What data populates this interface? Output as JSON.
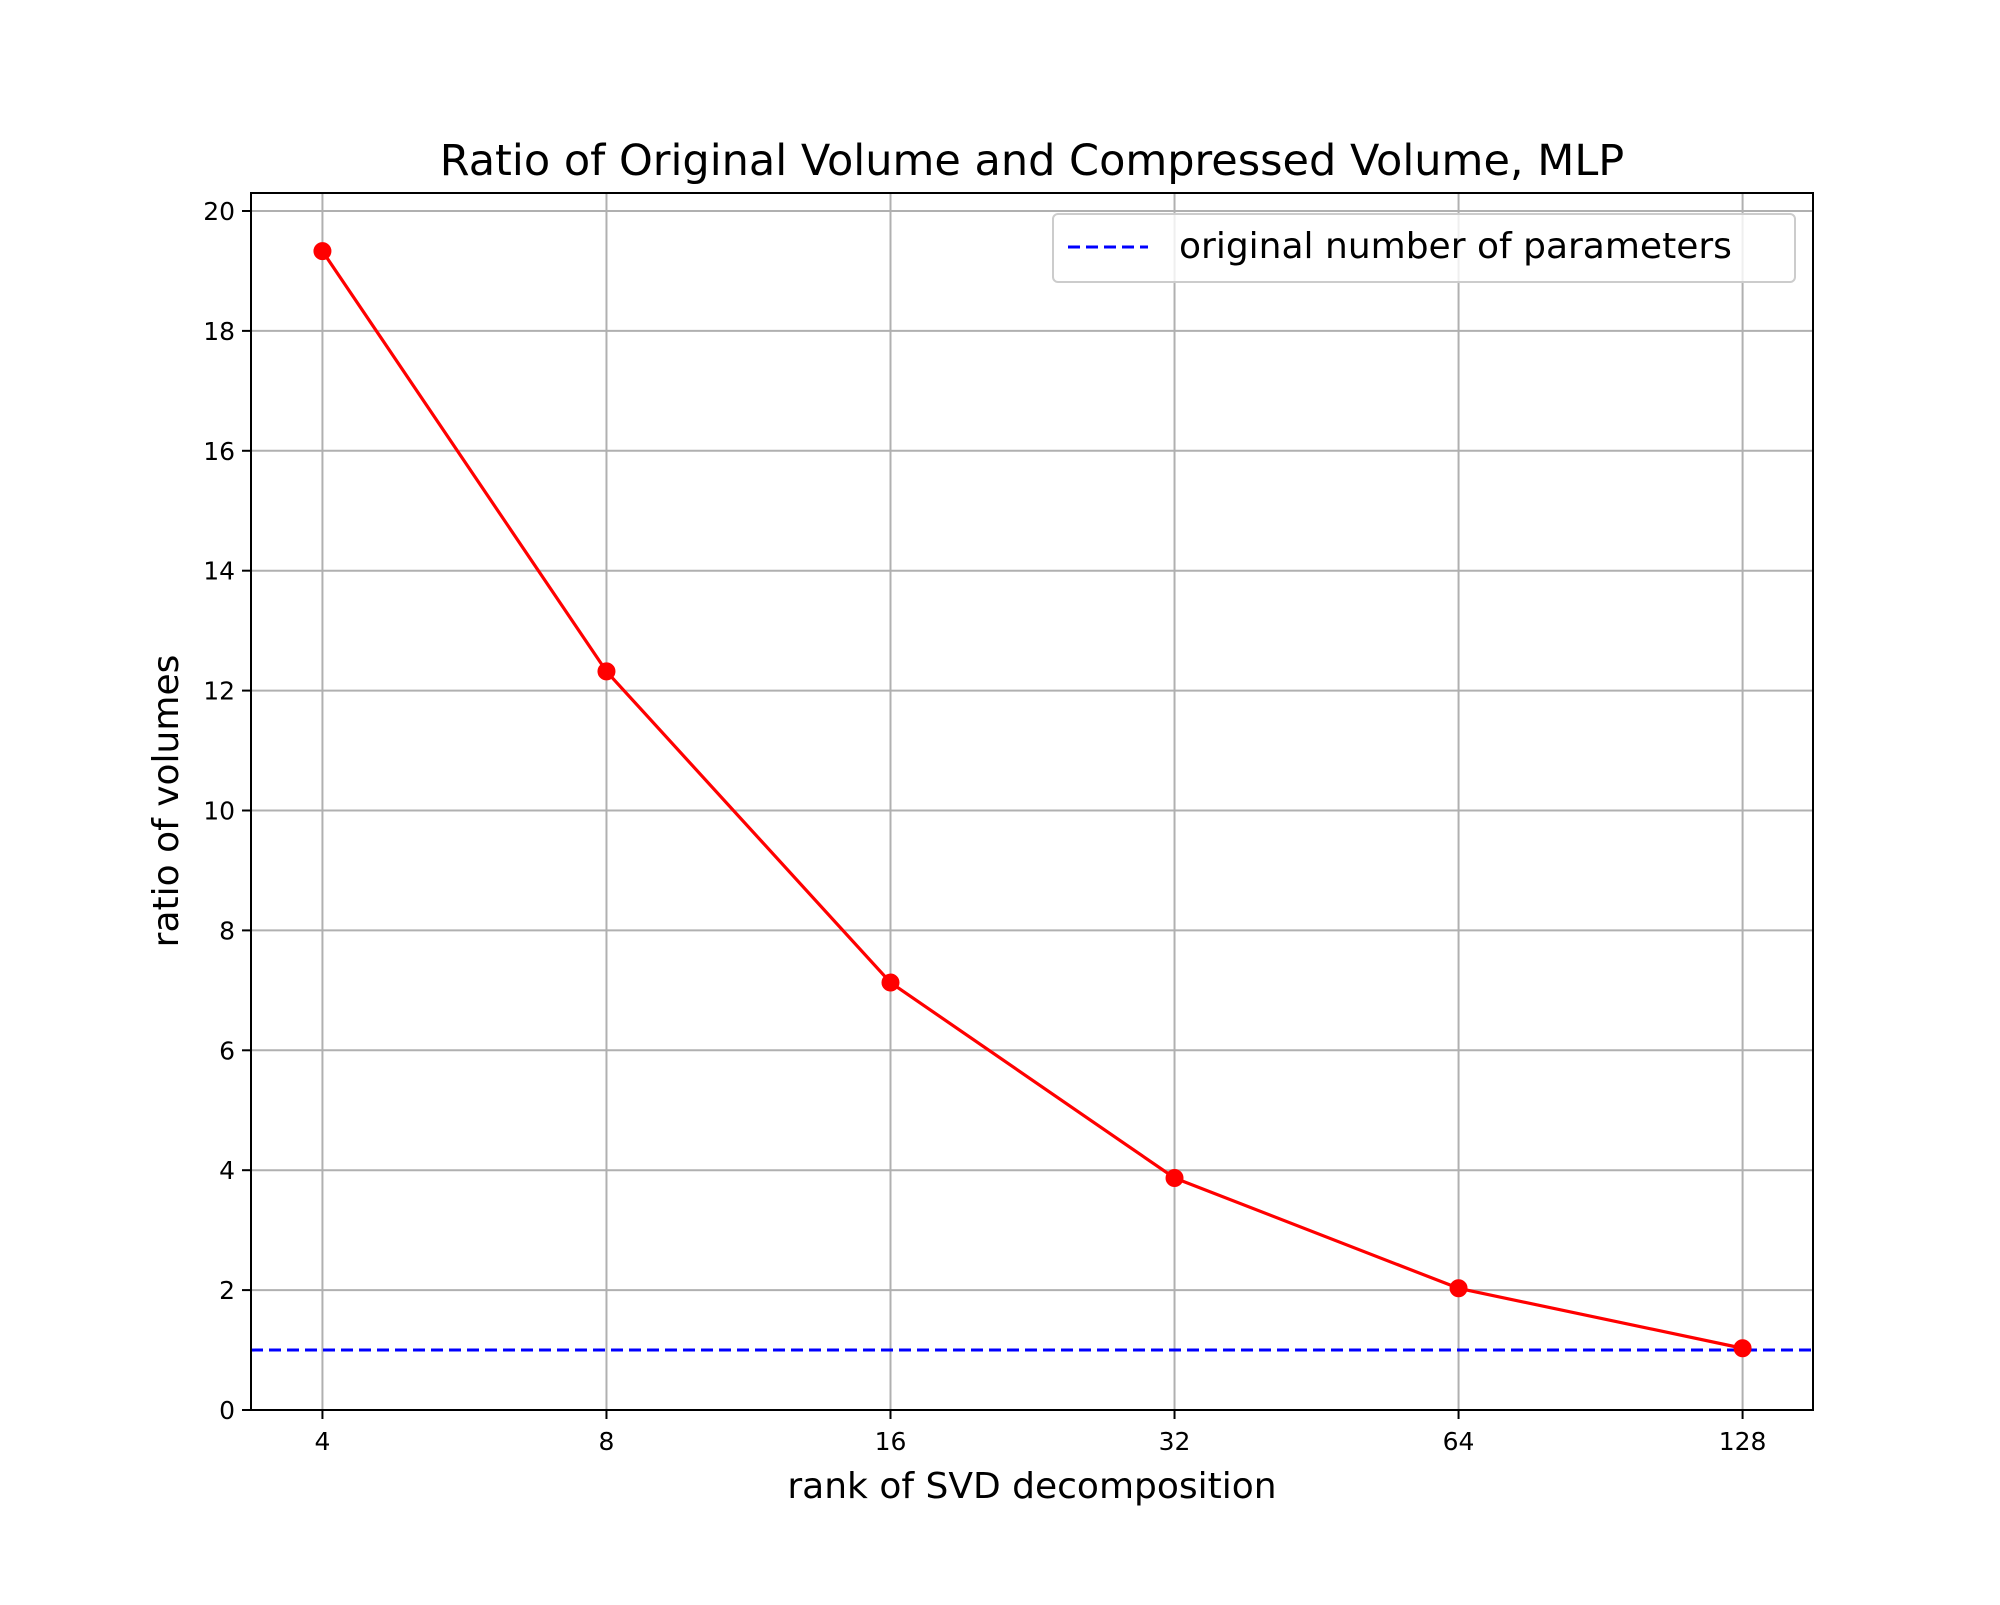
{
  "chart_data": {
    "type": "line",
    "title": "Ratio of Original Volume and Compressed Volume, MLP",
    "xlabel": "rank of SVD decomposition",
    "ylabel": "ratio of volumes",
    "x_scale": "log2",
    "x": [
      4,
      8,
      16,
      32,
      64,
      128
    ],
    "xticks": [
      "4",
      "8",
      "16",
      "32",
      "64",
      "128"
    ],
    "yticks": [
      0,
      2,
      4,
      6,
      8,
      10,
      12,
      14,
      16,
      18,
      20
    ],
    "ylim": [
      0,
      20.3
    ],
    "xlim": [
      3.36,
      152
    ],
    "grid": true,
    "legend_position": "top-right",
    "series": [
      {
        "values": [
          19.33,
          12.32,
          7.13,
          3.87,
          2.03,
          1.03
        ],
        "color": "#ff0000",
        "marker": "circle",
        "linestyle": "solid"
      }
    ],
    "reference_lines": [
      {
        "name": "original number of parameters",
        "y": 1.0,
        "color": "#0000ff",
        "linestyle": "dashed"
      }
    ]
  }
}
